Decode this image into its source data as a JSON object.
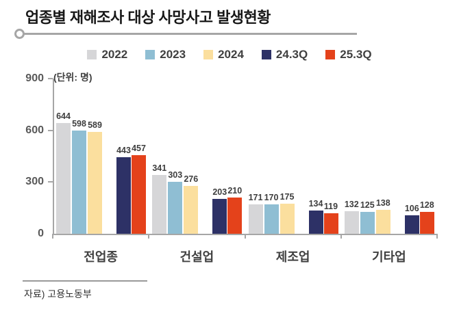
{
  "page": {
    "title": "업종별 재해조사 대상 사망사고 발생현황",
    "source": "자료) 고용노동부"
  },
  "chart_data": {
    "type": "bar",
    "title": "업종별 재해조사 대상 사망사고 발생현황",
    "unit_label": "(단위: 명)",
    "categories": [
      "전업종",
      "건설업",
      "제조업",
      "기타업"
    ],
    "series": [
      {
        "name": "2022",
        "color": "#d6d6d8",
        "values": [
          644,
          341,
          171,
          132
        ]
      },
      {
        "name": "2023",
        "color": "#8fbed3",
        "values": [
          598,
          303,
          170,
          125
        ]
      },
      {
        "name": "2024",
        "color": "#fbdf9e",
        "values": [
          589,
          276,
          175,
          138
        ]
      },
      {
        "name": "24.3Q",
        "color": "#2d3166",
        "values": [
          443,
          203,
          134,
          106
        ]
      },
      {
        "name": "25.3Q",
        "color": "#e4421b",
        "values": [
          457,
          210,
          119,
          128
        ]
      }
    ],
    "ylim": [
      0,
      900
    ],
    "yticks": [
      0,
      300,
      600,
      900
    ],
    "grid": false,
    "legend_position": "top",
    "value_labels": true,
    "axis_color": "#a6a6a6"
  }
}
